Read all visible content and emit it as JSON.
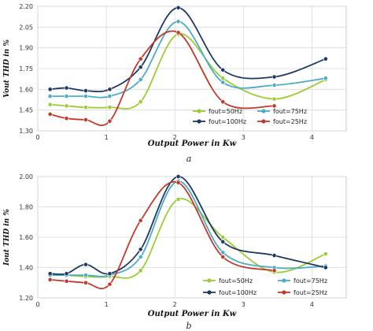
{
  "chart_data": [
    {
      "type": "line",
      "panel": "a",
      "ylabel": "Vout THD in %",
      "xlabel": "Output Power in Kw",
      "xlim": [
        0,
        4.5
      ],
      "ylim": [
        1.3,
        2.2
      ],
      "xticks": [
        "0",
        "1",
        "2",
        "3",
        "4"
      ],
      "yticks": [
        "1.30",
        "1.45",
        "1.60",
        "1.75",
        "1.90",
        "2.05",
        "2.20"
      ],
      "grid": true,
      "legend_position": "bottom-right",
      "series": [
        {
          "name": "fout=50Hz",
          "color": "#9acd32",
          "x": [
            0.18,
            0.42,
            0.7,
            1.05,
            1.5,
            2.05,
            2.7,
            3.45,
            4.2
          ],
          "y": [
            1.49,
            1.48,
            1.47,
            1.47,
            1.51,
            2.0,
            1.68,
            1.53,
            1.67
          ]
        },
        {
          "name": "fout=75Hz",
          "color": "#4bacc6",
          "x": [
            0.18,
            0.42,
            0.7,
            1.05,
            1.5,
            2.05,
            2.7,
            3.45,
            4.2
          ],
          "y": [
            1.55,
            1.55,
            1.55,
            1.55,
            1.67,
            2.09,
            1.65,
            1.63,
            1.68
          ]
        },
        {
          "name": "fout=100Hz",
          "color": "#1f3864",
          "x": [
            0.18,
            0.42,
            0.7,
            1.05,
            1.5,
            2.05,
            2.7,
            3.45,
            4.2
          ],
          "y": [
            1.6,
            1.61,
            1.59,
            1.6,
            1.76,
            2.19,
            1.74,
            1.69,
            1.82
          ]
        },
        {
          "name": "fout=25Hz",
          "color": "#c0392b",
          "x": [
            0.18,
            0.42,
            0.7,
            1.05,
            1.5,
            2.05,
            2.7,
            3.45
          ],
          "y": [
            1.42,
            1.39,
            1.38,
            1.37,
            1.82,
            2.01,
            1.51,
            1.48
          ]
        }
      ],
      "caption": "a"
    },
    {
      "type": "line",
      "panel": "b",
      "ylabel": "Iout THD in %",
      "xlabel": "Output Power in Kw",
      "xlim": [
        0,
        4.5
      ],
      "ylim": [
        1.2,
        2.0
      ],
      "xticks": [
        "0",
        "1",
        "2",
        "3",
        "4"
      ],
      "yticks": [
        "1.20",
        "1.40",
        "1.60",
        "1.80",
        "2.00"
      ],
      "grid": true,
      "legend_position": "bottom",
      "series": [
        {
          "name": "fout=50Hz",
          "color": "#9acd32",
          "x": [
            0.18,
            0.42,
            0.7,
            1.05,
            1.5,
            2.05,
            2.7,
            3.45,
            4.2
          ],
          "y": [
            1.36,
            1.35,
            1.34,
            1.34,
            1.38,
            1.85,
            1.6,
            1.37,
            1.49
          ]
        },
        {
          "name": "fout=75Hz",
          "color": "#4bacc6",
          "x": [
            0.18,
            0.42,
            0.7,
            1.05,
            1.5,
            2.05,
            2.7,
            3.45,
            4.2
          ],
          "y": [
            1.35,
            1.35,
            1.35,
            1.35,
            1.47,
            1.97,
            1.5,
            1.4,
            1.41
          ]
        },
        {
          "name": "fout=100Hz",
          "color": "#1f3864",
          "x": [
            0.18,
            0.42,
            0.7,
            1.05,
            1.5,
            2.05,
            2.7,
            3.45,
            4.2
          ],
          "y": [
            1.36,
            1.36,
            1.42,
            1.36,
            1.52,
            2.0,
            1.57,
            1.48,
            1.4
          ]
        },
        {
          "name": "fout=25Hz",
          "color": "#c0392b",
          "x": [
            0.18,
            0.42,
            0.7,
            1.05,
            1.5,
            2.05,
            2.7,
            3.45
          ],
          "y": [
            1.32,
            1.31,
            1.3,
            1.29,
            1.71,
            1.96,
            1.47,
            1.38
          ]
        }
      ],
      "caption": "b"
    }
  ]
}
